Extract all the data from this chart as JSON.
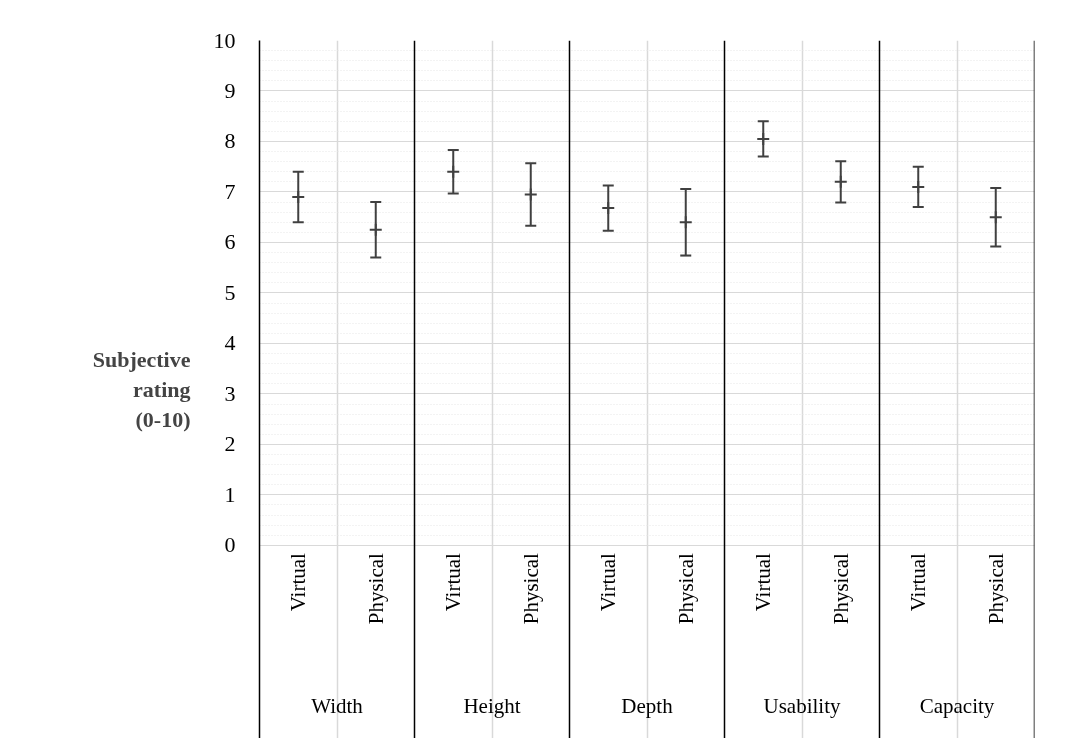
{
  "chart_data": {
    "type": "scatter",
    "ylabel": "Subjective rating (0-10)",
    "categories": [
      "Virtual",
      "Physical",
      "Virtual",
      "Physical",
      "Virtual",
      "Physical",
      "Virtual",
      "Physical",
      "Virtual",
      "Physical"
    ],
    "annotations": [
      "Width",
      "Height",
      "Depth",
      "Usability",
      "Capacity"
    ],
    "series": [
      {
        "color": "#404040",
        "values": [
          6.9,
          6.25,
          7.4,
          6.95,
          6.68,
          6.4,
          8.05,
          7.2,
          7.1,
          6.5
        ],
        "errors": [
          0.5,
          0.55,
          0.43,
          0.62,
          0.45,
          0.66,
          0.35,
          0.41,
          0.4,
          0.58
        ]
      }
    ],
    "ylim": [
      0,
      10
    ],
    "yticks": [
      0,
      1,
      2,
      3,
      4,
      5,
      6,
      7,
      8,
      9,
      10
    ],
    "grid": true,
    "marker": "cross"
  }
}
